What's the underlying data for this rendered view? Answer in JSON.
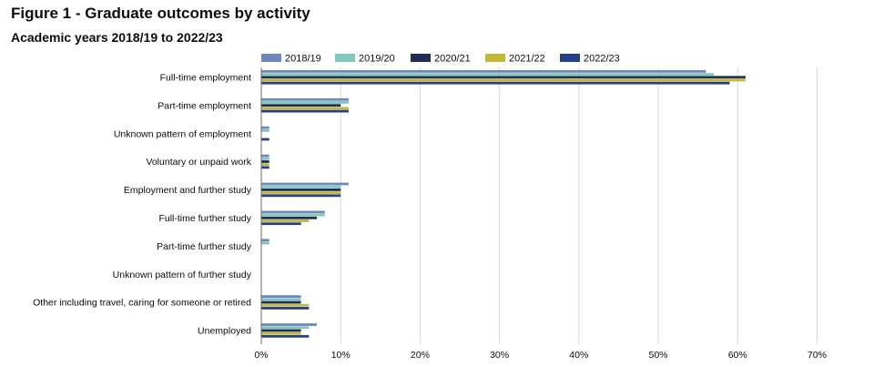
{
  "title": "Figure 1 - Graduate outcomes by activity",
  "subtitle": "Academic years 2018/19 to 2022/23",
  "chart_data": {
    "type": "bar",
    "orientation": "horizontal",
    "title": "Figure 1 - Graduate outcomes by activity",
    "subtitle": "Academic years 2018/19 to 2022/23",
    "xlabel": "",
    "ylabel": "",
    "xlim": [
      0,
      70
    ],
    "x_ticks": [
      "0%",
      "10%",
      "20%",
      "30%",
      "40%",
      "50%",
      "60%",
      "70%"
    ],
    "grid": true,
    "legend_position": "top",
    "categories": [
      "Full-time employment",
      "Part-time employment",
      "Unknown pattern of employment",
      "Voluntary or unpaid work",
      "Employment and further study",
      "Full-time further study",
      "Part-time further study",
      "Unknown pattern of further study",
      "Other including travel, caring for someone or retired",
      "Unemployed"
    ],
    "series": [
      {
        "name": "2018/19",
        "color": "#6f87bf",
        "values": [
          56,
          11,
          1,
          1,
          11,
          8,
          1,
          0,
          5,
          7
        ]
      },
      {
        "name": "2019/20",
        "color": "#7fc8bd",
        "values": [
          57,
          11,
          1,
          1,
          10,
          8,
          1,
          0,
          5,
          6
        ]
      },
      {
        "name": "2020/21",
        "color": "#1f2e52",
        "values": [
          61,
          10,
          0,
          1,
          10,
          7,
          0,
          0,
          5,
          5
        ]
      },
      {
        "name": "2021/22",
        "color": "#c4b836",
        "values": [
          61,
          11,
          0,
          1,
          10,
          6,
          0,
          0,
          6,
          5
        ]
      },
      {
        "name": "2022/23",
        "color": "#24408a",
        "values": [
          59,
          11,
          1,
          1,
          10,
          5,
          0,
          0,
          6,
          6
        ]
      }
    ]
  }
}
